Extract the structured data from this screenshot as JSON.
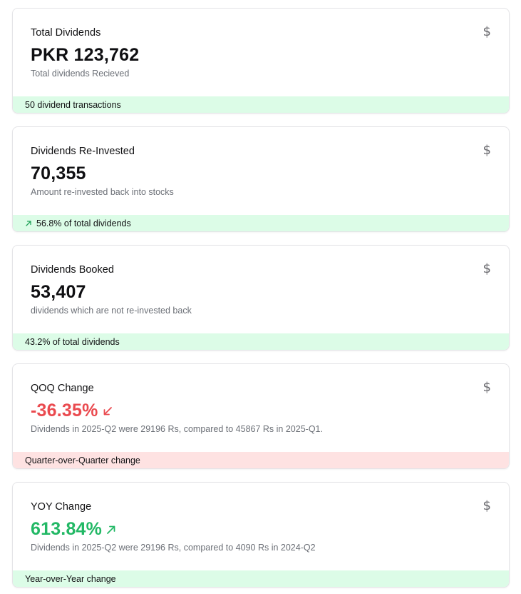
{
  "cards": [
    {
      "title": "Total Dividends",
      "value": "PKR 123,762",
      "description": "Total dividends Recieved",
      "footer": "50 dividend transactions",
      "icon": "dollar-icon"
    },
    {
      "title": "Dividends Re-Invested",
      "value": "70,355",
      "description": "Amount re-invested back into stocks",
      "footer": "56.8% of total dividends",
      "icon": "dollar-icon",
      "footer_icon": "arrow-up-right-icon"
    },
    {
      "title": "Dividends Booked",
      "value": "53,407",
      "description": "dividends which are not re-invested back",
      "footer": "43.2% of total dividends",
      "icon": "dollar-icon"
    },
    {
      "title": "QOQ Change",
      "value": "-36.35%",
      "description": "Dividends in 2025-Q2 were 29196 Rs, compared to 45867 Rs in 2025-Q1.",
      "footer": "Quarter-over-Quarter change",
      "icon": "dollar-icon",
      "trend_icon": "arrow-down-left-icon"
    },
    {
      "title": "YOY Change",
      "value": "613.84%",
      "description": "Dividends in 2025-Q2 were 29196 Rs, compared to 4090 Rs in 2024-Q2",
      "footer": "Year-over-Year change",
      "icon": "dollar-icon",
      "trend_icon": "arrow-up-right-icon"
    }
  ],
  "symbols": {
    "dollar": "$"
  },
  "colors": {
    "negative": "#ea4a4f",
    "positive": "#22b865",
    "footer_green": "#dcfce7",
    "footer_red": "#fee2e2"
  }
}
